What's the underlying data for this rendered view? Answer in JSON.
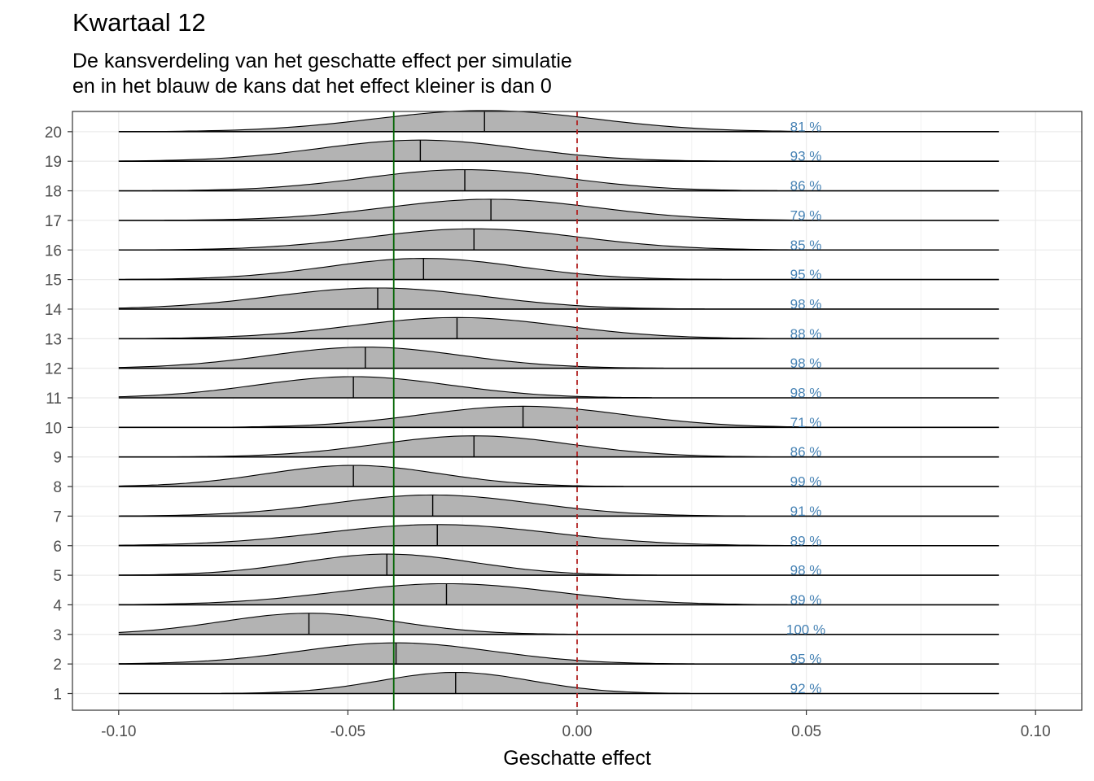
{
  "title": "Kwartaal 12",
  "subtitle": [
    "De kansverdeling van het geschatte effect per simulatie",
    "en in het blauw de kans dat het effect kleiner is dan 0"
  ],
  "chart_data": {
    "type": "ridgeline",
    "xlabel": "Geschatte effect",
    "ylabel": "",
    "xlim": [
      -0.11,
      0.11
    ],
    "x_ticks": [
      -0.1,
      -0.05,
      0.0,
      0.05,
      0.1
    ],
    "x_tick_labels": [
      "-0.10",
      "-0.05",
      "0.00",
      "0.05",
      "0.10"
    ],
    "y_tick_labels": [
      "1",
      "2",
      "3",
      "4",
      "5",
      "6",
      "7",
      "8",
      "9",
      "10",
      "11",
      "12",
      "13",
      "14",
      "15",
      "16",
      "17",
      "18",
      "19",
      "20"
    ],
    "grid": true,
    "reference_lines": [
      {
        "x": -0.04,
        "color": "#006400",
        "style": "solid"
      },
      {
        "x": 0.0,
        "color": "#b22222",
        "style": "dashed"
      }
    ],
    "series": [
      {
        "y": 1,
        "median": -0.0265,
        "sd": 0.0165,
        "label": "92 %"
      },
      {
        "y": 2,
        "median": -0.0395,
        "sd": 0.021,
        "label": "95 %"
      },
      {
        "y": 3,
        "median": -0.0585,
        "sd": 0.019,
        "label": "100 %"
      },
      {
        "y": 4,
        "median": -0.0285,
        "sd": 0.024,
        "label": "89 %"
      },
      {
        "y": 5,
        "median": -0.0415,
        "sd": 0.019,
        "label": "98 %"
      },
      {
        "y": 6,
        "median": -0.0305,
        "sd": 0.025,
        "label": "89 %"
      },
      {
        "y": 7,
        "median": -0.0315,
        "sd": 0.022,
        "label": "91 %"
      },
      {
        "y": 8,
        "median": -0.0488,
        "sd": 0.019,
        "label": "99 %"
      },
      {
        "y": 9,
        "median": -0.0225,
        "sd": 0.021,
        "label": "86 %"
      },
      {
        "y": 10,
        "median": -0.0118,
        "sd": 0.022,
        "label": "71 %"
      },
      {
        "y": 11,
        "median": -0.0488,
        "sd": 0.021,
        "label": "98 %"
      },
      {
        "y": 12,
        "median": -0.0462,
        "sd": 0.021,
        "label": "98 %"
      },
      {
        "y": 13,
        "median": -0.0262,
        "sd": 0.023,
        "label": "88 %"
      },
      {
        "y": 14,
        "median": -0.0435,
        "sd": 0.023,
        "label": "98 %"
      },
      {
        "y": 15,
        "median": -0.0335,
        "sd": 0.021,
        "label": "95 %"
      },
      {
        "y": 16,
        "median": -0.0225,
        "sd": 0.023,
        "label": "85 %"
      },
      {
        "y": 17,
        "median": -0.0188,
        "sd": 0.023,
        "label": "79 %"
      },
      {
        "y": 18,
        "median": -0.0245,
        "sd": 0.022,
        "label": "86 %"
      },
      {
        "y": 19,
        "median": -0.0342,
        "sd": 0.022,
        "label": "93 %"
      },
      {
        "y": 20,
        "median": -0.0202,
        "sd": 0.024,
        "label": "81 %"
      }
    ]
  }
}
